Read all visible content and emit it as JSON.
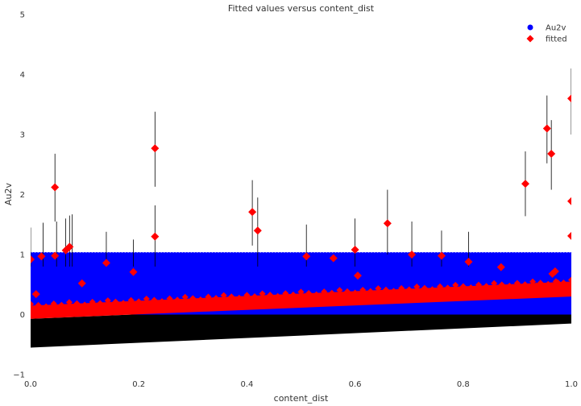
{
  "chart_data": {
    "type": "scatter",
    "title": "Fitted values versus content_dist",
    "xlabel": "content_dist",
    "ylabel": "Au2v",
    "xlim": [
      0,
      1
    ],
    "ylim": [
      -1,
      5
    ],
    "xticks": [
      "0.0",
      "0.2",
      "0.4",
      "0.6",
      "0.8",
      "1.0"
    ],
    "yticks": [
      "−1",
      "0",
      "1",
      "2",
      "3",
      "4",
      "5"
    ],
    "grid": false,
    "legend_position": "top-right",
    "colors": {
      "au2v": "#0000ff",
      "fitted": "#ff0000",
      "interval": "#000000"
    },
    "band": {
      "au2v_range": [
        0,
        1
      ],
      "fitted_lower_start": -0.07,
      "fitted_lower_end": 0.3,
      "fitted_upper_start": 0.15,
      "fitted_upper_end": 0.55,
      "interval_lower_start": -0.55,
      "interval_lower_end": -0.15
    },
    "series": [
      {
        "name": "Au2v",
        "marker": "circle",
        "x": [
          0.0,
          0.1,
          0.2,
          0.3,
          0.4,
          0.5,
          0.6,
          0.7,
          0.8,
          0.9,
          1.0
        ],
        "y": [
          1.0,
          1.0,
          1.0,
          1.0,
          1.0,
          1.0,
          1.0,
          1.0,
          1.0,
          1.0,
          1.0
        ]
      },
      {
        "name": "fitted",
        "marker": "diamond",
        "x": [
          0.0,
          0.01,
          0.02,
          0.045,
          0.045,
          0.065,
          0.072,
          0.095,
          0.14,
          0.19,
          0.23,
          0.23,
          0.41,
          0.42,
          0.51,
          0.56,
          0.6,
          0.605,
          0.66,
          0.705,
          0.76,
          0.81,
          0.87,
          0.915,
          0.955,
          0.963,
          0.97,
          1.0,
          1.0,
          1.0,
          0.975,
          0.965,
          0.935
        ],
        "y": [
          0.92,
          0.34,
          0.97,
          2.12,
          0.98,
          1.07,
          1.13,
          0.52,
          0.86,
          0.71,
          2.77,
          1.3,
          1.71,
          1.4,
          0.97,
          0.94,
          1.08,
          0.65,
          1.52,
          1.0,
          0.98,
          0.88,
          0.79,
          2.18,
          3.1,
          2.68,
          0.72,
          3.6,
          1.89,
          1.31,
          0.52,
          0.68,
          0.47
        ]
      }
    ],
    "error_bars": {
      "x": [
        0.0,
        0.023,
        0.045,
        0.048,
        0.065,
        0.072,
        0.077,
        0.14,
        0.19,
        0.23,
        0.23,
        0.41,
        0.42,
        0.51,
        0.6,
        0.66,
        0.705,
        0.76,
        0.81,
        0.915,
        0.955,
        0.963,
        1.0
      ],
      "low": [
        0.8,
        0.8,
        1.55,
        0.8,
        0.8,
        0.8,
        0.8,
        0.8,
        0.8,
        2.13,
        0.8,
        1.15,
        0.8,
        0.8,
        0.8,
        1.0,
        0.8,
        0.8,
        0.8,
        1.64,
        2.52,
        2.08,
        3.0
      ],
      "high": [
        1.45,
        1.53,
        2.68,
        1.55,
        1.6,
        1.65,
        1.67,
        1.38,
        1.25,
        3.38,
        1.82,
        2.24,
        1.95,
        1.5,
        1.6,
        2.08,
        1.55,
        1.4,
        1.38,
        2.72,
        3.65,
        3.24,
        4.1
      ]
    }
  }
}
